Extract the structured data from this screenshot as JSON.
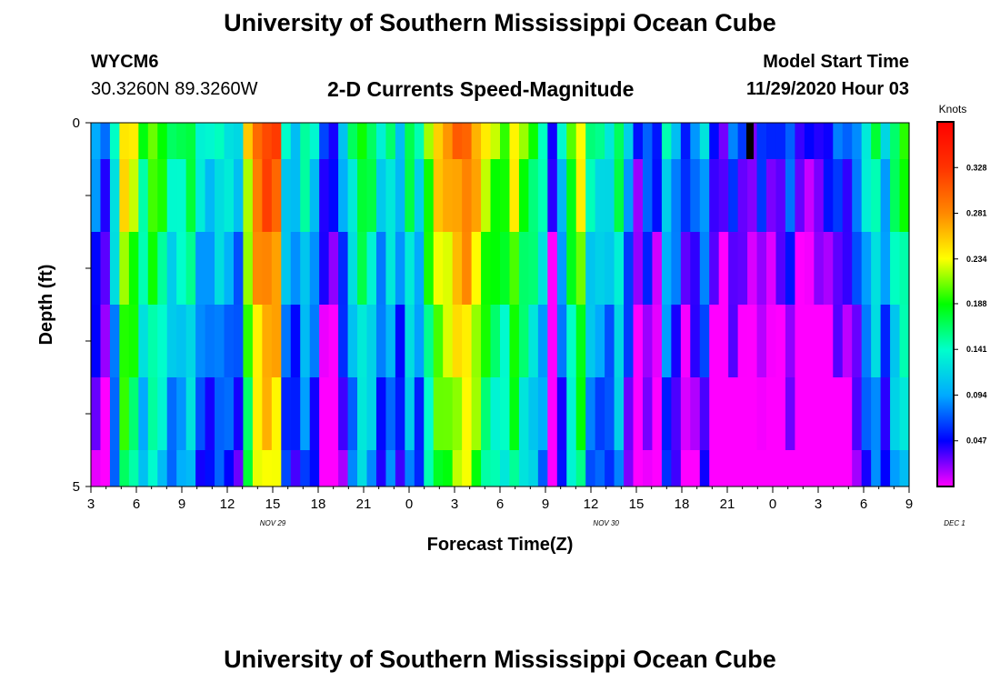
{
  "header": {
    "title": "University of Southern Mississippi Ocean Cube",
    "station_id": "WYCM6",
    "coordinates": "30.3260N 89.3260W",
    "plot_title": "2-D Currents Speed-Magnitude",
    "model_start_label": "Model Start Time",
    "model_start_value": "11/29/2020 Hour 03"
  },
  "footer": {
    "title": "University of Southern Mississippi Ocean Cube"
  },
  "chart_data": {
    "type": "heatmap",
    "title": "2-D Currents Speed-Magnitude",
    "xlabel": "Forecast Time(Z)",
    "ylabel": "Depth (ft)",
    "x_tick_labels": [
      "3",
      "6",
      "9",
      "12",
      "15",
      "18",
      "21",
      "0",
      "3",
      "6",
      "9",
      "12",
      "15",
      "18",
      "21",
      "0",
      "3",
      "6",
      "9"
    ],
    "date_labels": [
      {
        "text": "NOV 29",
        "x": 15
      },
      {
        "text": "NOV 30",
        "x": 37
      },
      {
        "text": "DEC 1",
        "x": 60
      }
    ],
    "xlim": [
      3,
      57
    ],
    "ylim": [
      0,
      5
    ],
    "y_tick_labels": [
      "0",
      "5"
    ],
    "y_ticks": [
      0,
      1,
      2,
      3,
      4,
      5
    ],
    "depth_levels": [
      0,
      0.5,
      1.5,
      2.5,
      3.5,
      4.5
    ],
    "colorbar": {
      "label": "Knots",
      "ticks": [
        0.047,
        0.094,
        0.141,
        0.188,
        0.234,
        0.281,
        0.328
      ],
      "range": [
        0,
        0.375
      ]
    },
    "profile": [
      0.08,
      0.05,
      0.13,
      0.24,
      0.22,
      0.16,
      0.2,
      0.18,
      0.14,
      0.15,
      0.17,
      0.12,
      0.11,
      0.13,
      0.12,
      0.1,
      0.23,
      0.29,
      0.31,
      0.3,
      0.12,
      0.1,
      0.14,
      0.11,
      0.05,
      0.04,
      0.09,
      0.14,
      0.18,
      0.16,
      0.11,
      0.14,
      0.1,
      0.16,
      0.12,
      0.2,
      0.25,
      0.26,
      0.28,
      0.29,
      0.26,
      0.22,
      0.2,
      0.19,
      0.23,
      0.19,
      0.17,
      0.14,
      0.03,
      0.11,
      0.19,
      0.23,
      0.14,
      0.13,
      0.12,
      0.16,
      0.09,
      0.03,
      0.07,
      0.04,
      0.12,
      0.09,
      0.05,
      0.07,
      0.1,
      0.04,
      0.02,
      0.06,
      0.04,
      0.02,
      0.05,
      0.03,
      0.04,
      0.07,
      0.02,
      0.02,
      0.03,
      0.04,
      0.06,
      0.05,
      0.08,
      0.12,
      0.15,
      0.1,
      0.16,
      0.18
    ],
    "depth_offsets": [
      0.015,
      0.0,
      -0.02,
      -0.04,
      -0.055,
      -0.065
    ],
    "missing_cells": [
      {
        "x": 46.5,
        "depth_level": 0
      }
    ]
  }
}
